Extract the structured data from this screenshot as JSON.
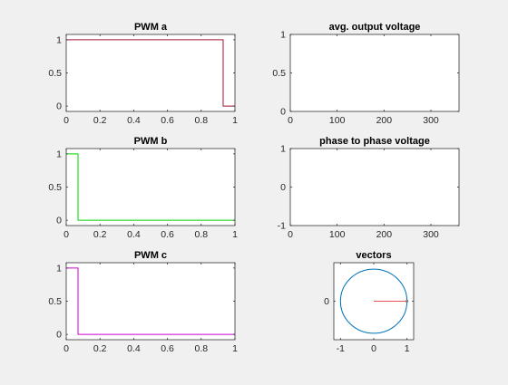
{
  "figure": {
    "background": "#f0f0f0"
  },
  "chart_data": [
    {
      "id": "pwm-a",
      "type": "line",
      "title": "PWM a",
      "xlim": [
        0,
        1
      ],
      "ylim": [
        -0.08,
        1.08
      ],
      "xticks": [
        0,
        0.2,
        0.4,
        0.6,
        0.8,
        1
      ],
      "xtick_labels": [
        "0",
        "0.2",
        "0.4",
        "0.6",
        "0.8",
        "1"
      ],
      "yticks": [
        0,
        0.5,
        1
      ],
      "ytick_labels": [
        "0",
        "0.5",
        "1"
      ],
      "grid": false,
      "series": [
        {
          "color": "#a2142f",
          "step": true,
          "x": [
            0,
            0.93,
            0.93,
            1
          ],
          "y": [
            1,
            1,
            0,
            0
          ]
        }
      ]
    },
    {
      "id": "avg-output-voltage",
      "type": "line",
      "title": "avg. output voltage",
      "xlim": [
        0,
        360
      ],
      "ylim": [
        0,
        1
      ],
      "xticks": [
        0,
        100,
        200,
        300
      ],
      "xtick_labels": [
        "0",
        "100",
        "200",
        "300"
      ],
      "yticks": [
        0,
        0.5,
        1
      ],
      "ytick_labels": [
        "0",
        "0.5",
        "1"
      ],
      "grid": false,
      "series": []
    },
    {
      "id": "pwm-b",
      "type": "line",
      "title": "PWM b",
      "xlim": [
        0,
        1
      ],
      "ylim": [
        -0.08,
        1.08
      ],
      "xticks": [
        0,
        0.2,
        0.4,
        0.6,
        0.8,
        1
      ],
      "xtick_labels": [
        "0",
        "0.2",
        "0.4",
        "0.6",
        "0.8",
        "1"
      ],
      "yticks": [
        0,
        0.5,
        1
      ],
      "ytick_labels": [
        "0",
        "0.5",
        "1"
      ],
      "grid": false,
      "series": [
        {
          "color": "#00d400",
          "step": true,
          "x": [
            0,
            0.07,
            0.07,
            1
          ],
          "y": [
            1,
            1,
            0,
            0
          ]
        }
      ]
    },
    {
      "id": "phase-to-phase-voltage",
      "type": "line",
      "title": "phase to phase voltage",
      "xlim": [
        0,
        360
      ],
      "ylim": [
        -1,
        1
      ],
      "xticks": [
        0,
        100,
        200,
        300
      ],
      "xtick_labels": [
        "0",
        "100",
        "200",
        "300"
      ],
      "yticks": [
        -1,
        0,
        1
      ],
      "ytick_labels": [
        "-1",
        "0",
        "1"
      ],
      "grid": false,
      "series": []
    },
    {
      "id": "pwm-c",
      "type": "line",
      "title": "PWM c",
      "xlim": [
        0,
        1
      ],
      "ylim": [
        -0.08,
        1.08
      ],
      "xticks": [
        0,
        0.2,
        0.4,
        0.6,
        0.8,
        1
      ],
      "xtick_labels": [
        "0",
        "0.2",
        "0.4",
        "0.6",
        "0.8",
        "1"
      ],
      "yticks": [
        0,
        0.5,
        1
      ],
      "ytick_labels": [
        "0",
        "0.5",
        "1"
      ],
      "grid": false,
      "series": [
        {
          "color": "#cc00cc",
          "step": true,
          "x": [
            0,
            0.07,
            0.07,
            1
          ],
          "y": [
            1,
            1,
            0,
            0
          ]
        }
      ]
    },
    {
      "id": "vectors",
      "type": "line",
      "title": "vectors",
      "xlim": [
        -1.2,
        1.2
      ],
      "ylim": [
        -1.2,
        1.2
      ],
      "xticks": [
        -1,
        0,
        1
      ],
      "xtick_labels": [
        "-1",
        "0",
        "1"
      ],
      "yticks": [
        0
      ],
      "ytick_labels": [
        "0"
      ],
      "grid": false,
      "series": [
        {
          "color": "#0072bd",
          "shape": "circle",
          "center": [
            0,
            0
          ],
          "radius": 1
        },
        {
          "color": "#e8505b",
          "x": [
            0,
            1
          ],
          "y": [
            0,
            0
          ]
        },
        {
          "color": "#7f7f7f",
          "shape": "point",
          "x": [
            1
          ],
          "y": [
            0
          ]
        }
      ]
    }
  ]
}
